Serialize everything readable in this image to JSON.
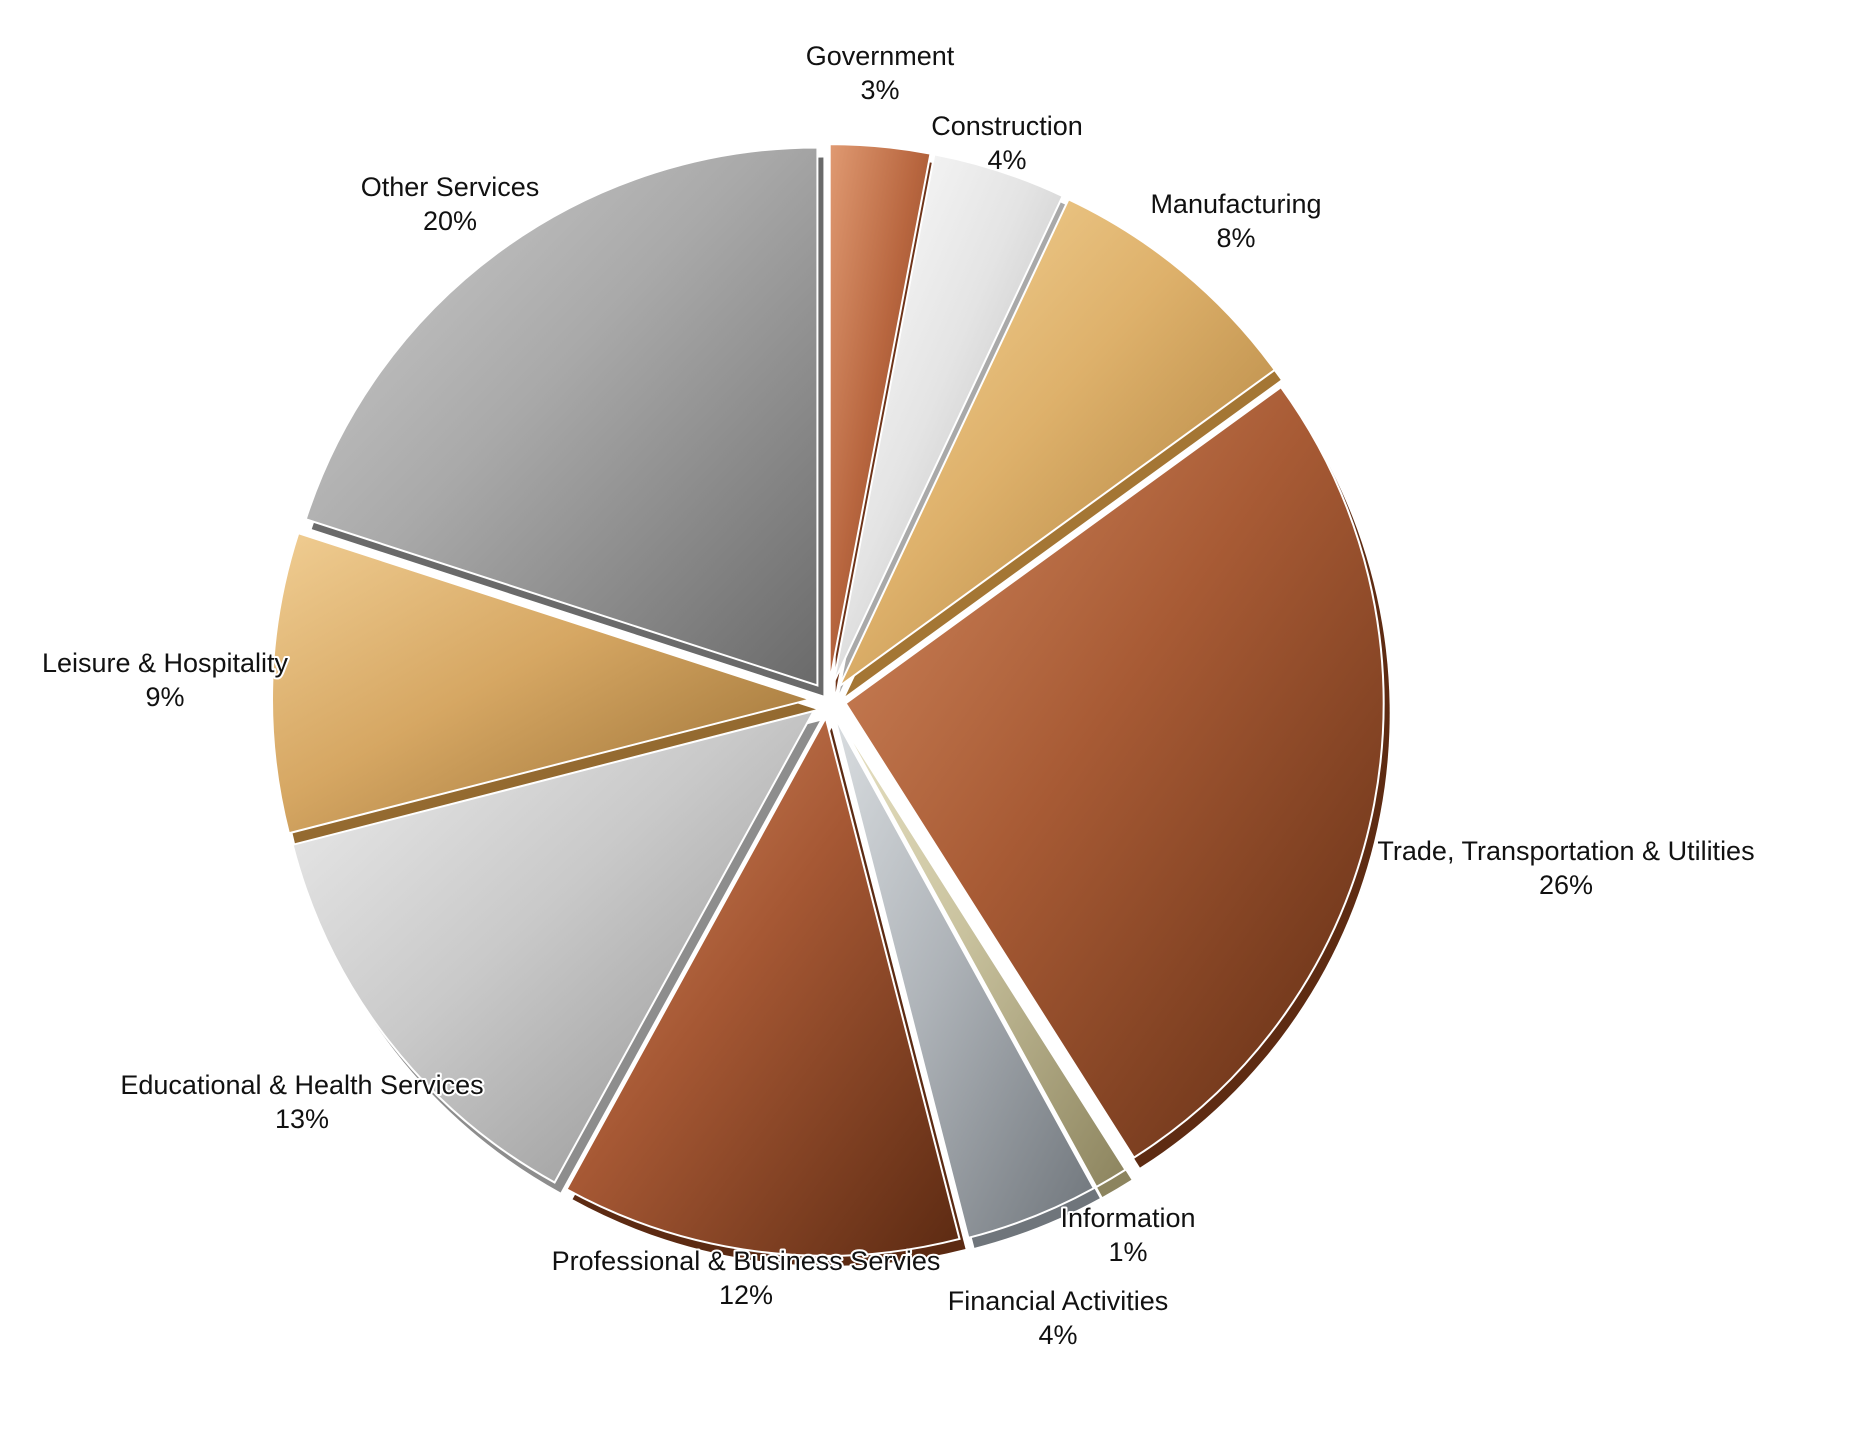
{
  "chart_data": {
    "type": "pie",
    "start_angle_deg": 0,
    "direction": "clockwise",
    "exploded": true,
    "style": "3d-metallic",
    "legend": "none",
    "slices": [
      {
        "label": "Government",
        "value": 3,
        "value_label": "3%",
        "color": "#b8663f",
        "color_light": "#e09a72",
        "color_dark": "#6e3318"
      },
      {
        "label": "Construction",
        "value": 4,
        "value_label": "4%",
        "color": "#e4e4e4",
        "color_light": "#ffffff",
        "color_dark": "#a9a9a9"
      },
      {
        "label": "Manufacturing",
        "value": 8,
        "value_label": "8%",
        "color": "#deb16b",
        "color_light": "#f6d79b",
        "color_dark": "#a47634"
      },
      {
        "label": "Trade, Transportation & Utilities",
        "value": 26,
        "value_label": "26%",
        "color": "#a85b35",
        "color_light": "#d58c61",
        "color_dark": "#5e2b12"
      },
      {
        "label": "Information",
        "value": 1,
        "value_label": "1%",
        "color": "#c9c29e",
        "color_light": "#e8e2c4",
        "color_dark": "#8c845e"
      },
      {
        "label": "Financial Activities",
        "value": 4,
        "value_label": "4%",
        "color": "#aeb3b8",
        "color_light": "#d9dde0",
        "color_dark": "#6f757b"
      },
      {
        "label": "Professional & Business Servies",
        "value": 12,
        "value_label": "12%",
        "color": "#a65834",
        "color_light": "#d48a60",
        "color_dark": "#5c2a12"
      },
      {
        "label": "Educational & Health Services",
        "value": 13,
        "value_label": "13%",
        "color": "#c9c9c9",
        "color_light": "#eeeeee",
        "color_dark": "#8d8d8d"
      },
      {
        "label": "Leisure & Hospitality",
        "value": 9,
        "value_label": "9%",
        "color": "#d6a763",
        "color_light": "#f0cd92",
        "color_dark": "#946a30"
      },
      {
        "label": "Other Services",
        "value": 20,
        "value_label": "20%",
        "color": "#a9a9a9",
        "color_light": "#d0d0d0",
        "color_dark": "#6a6a6a"
      }
    ]
  }
}
